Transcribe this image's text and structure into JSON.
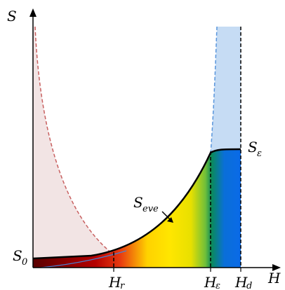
{
  "labels": {
    "y_axis": "S",
    "x_axis": "H",
    "s_zero_main": "S",
    "s_zero_sub": "0",
    "s_eps_main": "S",
    "s_eps_sub": "ε",
    "s_eve_main": "S",
    "s_eve_sub": "eve",
    "h_r_main": "H",
    "h_r_sub": "r",
    "h_eps_main": "H",
    "h_eps_sub": "ε",
    "h_d_main": "H",
    "h_d_sub": "d"
  },
  "colors": {
    "axis": "#000000",
    "curve": "#000000",
    "pink_region": "#f2e4e4",
    "pink_dashed": "#c86060",
    "blue_region": "#c6dcf4",
    "blue_dashed": "#5a96dc",
    "gradient_stops": [
      "#5a0000",
      "#b40000",
      "#e83a10",
      "#ffd200",
      "#ffe600",
      "#e8e000",
      "#6fbf3a",
      "#0a8a5a",
      "#0a6fd8",
      "#0a6ae8"
    ]
  }
}
